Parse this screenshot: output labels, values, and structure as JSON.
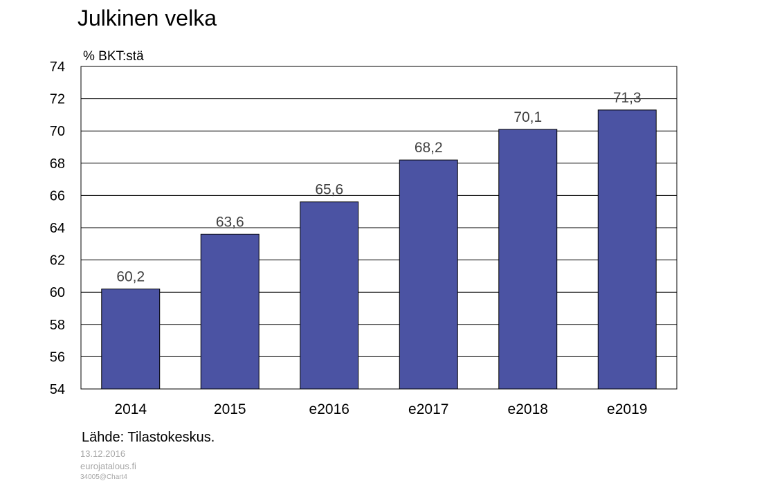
{
  "chart_data": {
    "type": "bar",
    "title": "Julkinen velka",
    "ylabel": "% BKT:stä",
    "xlabel": "",
    "categories": [
      "2014",
      "2015",
      "e2016",
      "e2017",
      "e2018",
      "e2019"
    ],
    "values": [
      60.2,
      63.6,
      65.6,
      68.2,
      70.1,
      71.3
    ],
    "data_labels": [
      "60,2",
      "63,6",
      "65,6",
      "68,2",
      "70,1",
      "71,3"
    ],
    "ylim": [
      54,
      74
    ],
    "yticks": [
      54,
      56,
      58,
      60,
      62,
      64,
      66,
      68,
      70,
      72,
      74
    ],
    "grid": true,
    "legend": "none",
    "bar_color": "#4b53a3"
  },
  "source": "Lähde: Tilastokeskus.",
  "footer": {
    "date": "13.12.2016",
    "site": "eurojatalous.fi",
    "code": "34005@Chart4"
  }
}
